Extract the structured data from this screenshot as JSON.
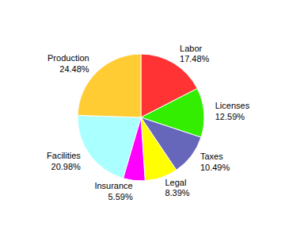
{
  "chart_data": {
    "type": "pie",
    "categories": [
      "Labor",
      "Licenses",
      "Taxes",
      "Legal",
      "Insurance",
      "Facilities",
      "Production"
    ],
    "values": [
      17.48,
      12.59,
      10.49,
      8.39,
      5.59,
      20.98,
      24.48
    ],
    "value_labels": [
      "17.48%",
      "12.59%",
      "10.49%",
      "8.39%",
      "5.59%",
      "20.98%",
      "24.48%"
    ],
    "colors": [
      "#ff3333",
      "#33ee00",
      "#6666bb",
      "#ffff00",
      "#ff00ff",
      "#aaffff",
      "#ffcc33"
    ],
    "data_labels": true
  }
}
